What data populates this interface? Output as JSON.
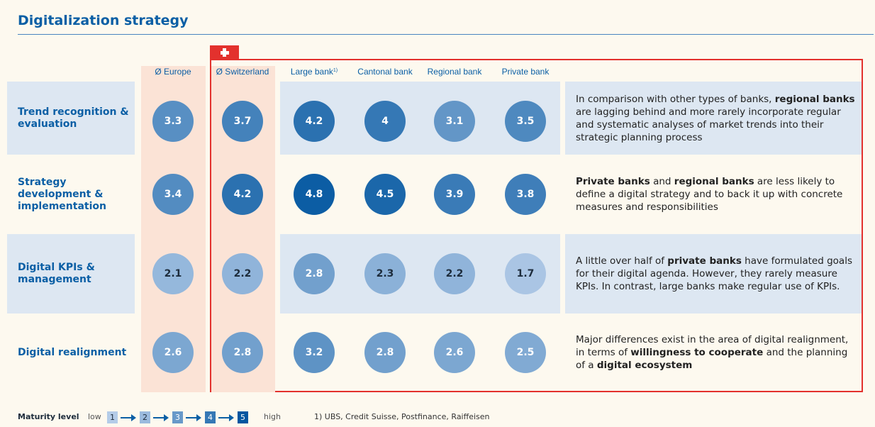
{
  "header": {
    "title": "Digitalization strategy"
  },
  "table": {
    "columns": [
      {
        "label": "Ø Europe"
      },
      {
        "label": "Ø Switzerland"
      },
      {
        "label": "Large bank",
        "note": "1)"
      },
      {
        "label": "Cantonal bank"
      },
      {
        "label": "Regional bank"
      },
      {
        "label": "Private bank"
      }
    ],
    "rows": [
      {
        "label": "Trend recognition & evaluation",
        "values": [
          3.3,
          3.7,
          4.2,
          4.0,
          3.1,
          3.5
        ],
        "comment": [
          {
            "text": "In comparison with other types of banks, "
          },
          {
            "text": "regional banks",
            "bold": true
          },
          {
            "text": " are lagging behind and more rarely incorporate regular and systematic analyses of market trends into their strategic planning process"
          }
        ]
      },
      {
        "label": "Strategy development & implementation",
        "values": [
          3.4,
          4.2,
          4.8,
          4.5,
          3.9,
          3.8
        ],
        "comment": [
          {
            "text": "Private banks",
            "bold": true
          },
          {
            "text": " and "
          },
          {
            "text": "regional banks",
            "bold": true
          },
          {
            "text": " are less likely to define a digital strategy and to back it up with concrete measures and responsibilities"
          }
        ]
      },
      {
        "label": "Digital KPIs & management",
        "values": [
          2.1,
          2.2,
          2.8,
          2.3,
          2.2,
          1.7
        ],
        "comment": [
          {
            "text": "A little over half of "
          },
          {
            "text": "private banks",
            "bold": true
          },
          {
            "text": " have formulated goals for their digital agenda. However, they rarely measure KPIs. In contrast, large banks make regular use of KPIs."
          }
        ]
      },
      {
        "label": "Digital realignment",
        "values": [
          2.6,
          2.8,
          3.2,
          2.8,
          2.6,
          2.5
        ],
        "comment": [
          {
            "text": "Major differences exist in the area of digital realignment, in terms of "
          },
          {
            "text": "willingness to cooperate",
            "bold": true
          },
          {
            "text": " and the planning of a "
          },
          {
            "text": "digital ecosystem",
            "bold": true
          }
        ]
      }
    ]
  },
  "legend": {
    "title": "Maturity level",
    "low": "low",
    "high": "high",
    "levels": [
      1,
      2,
      3,
      4,
      5
    ]
  },
  "footnote": "1) UBS, Credit Suisse, Postfinance, Raiffeisen"
}
